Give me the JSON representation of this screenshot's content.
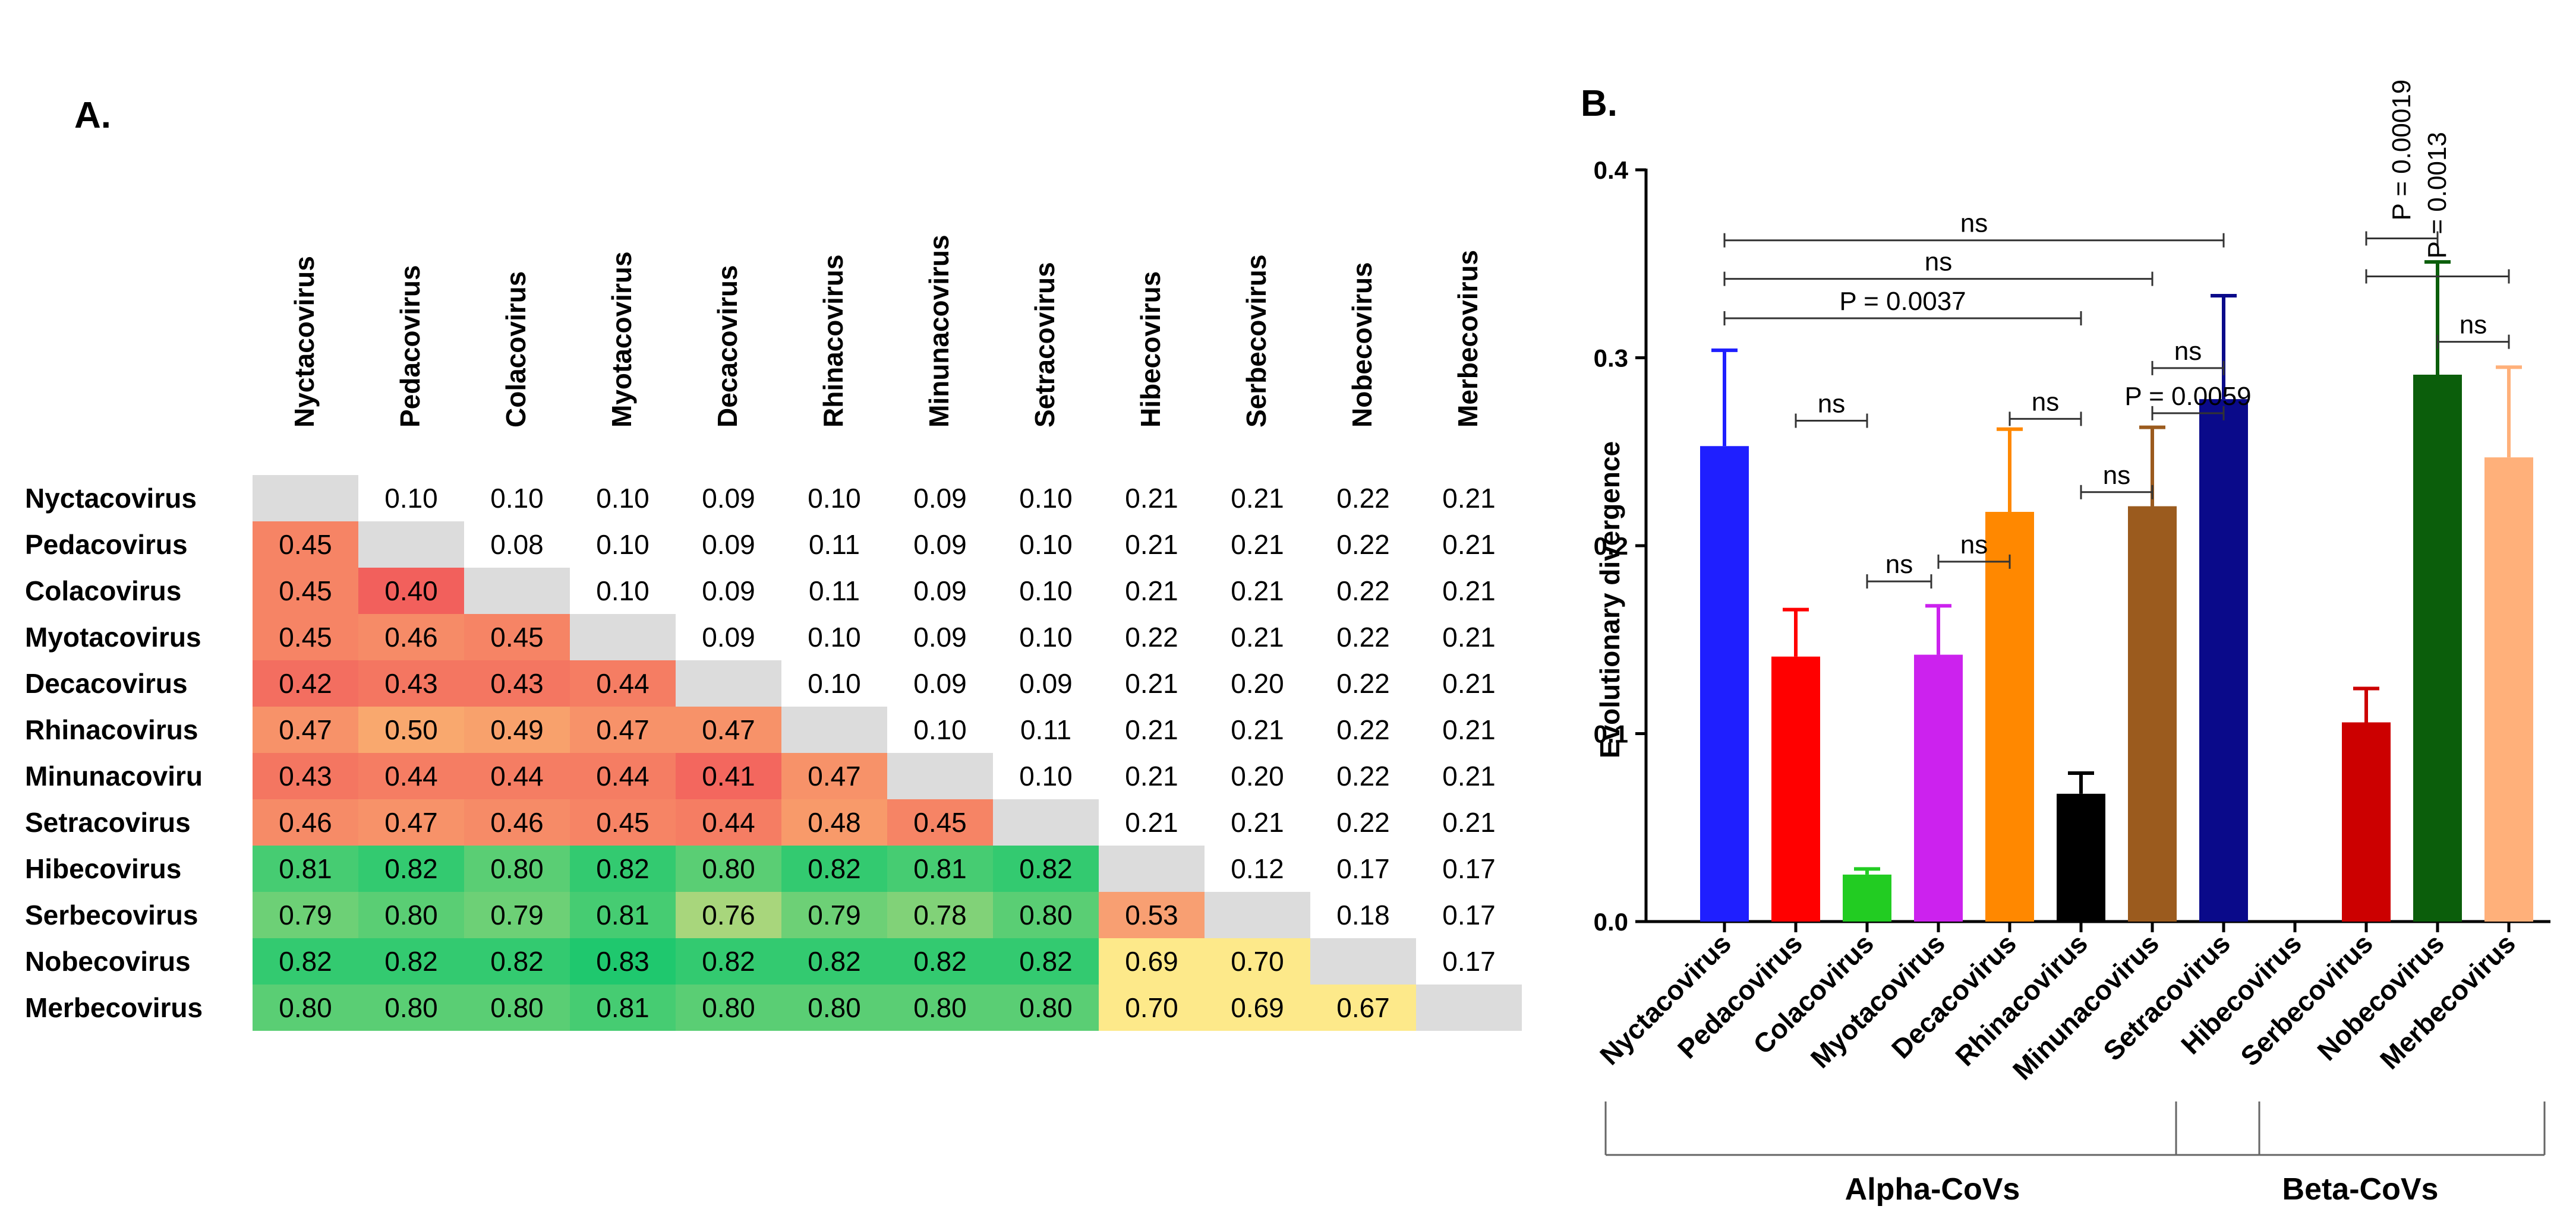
{
  "panels": {
    "a_label": "A.",
    "b_label": "B."
  },
  "heatmap": {
    "type": "heatmap",
    "row_labels": [
      "Nyctacovirus",
      "Pedacovirus",
      "Colacovirus",
      "Myotacovirus",
      "Decacovirus",
      "Rhinacovirus",
      "Minunacoviru",
      "Setracovirus",
      "Hibecovirus",
      "Serbecovirus",
      "Nobecovirus",
      "Merbecovirus"
    ],
    "col_labels": [
      "Nyctacovirus",
      "Pedacovirus",
      "Colacovirus",
      "Myotacovirus",
      "Decacovirus",
      "Rhinacovirus",
      "Minunacovirus",
      "Setracovirus",
      "Hibecovirus",
      "Serbecovirus",
      "Nobecovirus",
      "Merbecovirus"
    ],
    "matrix": [
      [
        null,
        "0.10",
        "0.10",
        "0.10",
        "0.09",
        "0.10",
        "0.09",
        "0.10",
        "0.21",
        "0.21",
        "0.22",
        "0.21"
      ],
      [
        "0.45",
        null,
        "0.08",
        "0.10",
        "0.09",
        "0.11",
        "0.09",
        "0.10",
        "0.21",
        "0.21",
        "0.22",
        "0.21"
      ],
      [
        "0.45",
        "0.40",
        null,
        "0.10",
        "0.09",
        "0.11",
        "0.09",
        "0.10",
        "0.21",
        "0.21",
        "0.22",
        "0.21"
      ],
      [
        "0.45",
        "0.46",
        "0.45",
        null,
        "0.09",
        "0.10",
        "0.09",
        "0.10",
        "0.22",
        "0.21",
        "0.22",
        "0.21"
      ],
      [
        "0.42",
        "0.43",
        "0.43",
        "0.44",
        null,
        "0.10",
        "0.09",
        "0.09",
        "0.21",
        "0.20",
        "0.22",
        "0.21"
      ],
      [
        "0.47",
        "0.50",
        "0.49",
        "0.47",
        "0.47",
        null,
        "0.10",
        "0.11",
        "0.21",
        "0.21",
        "0.22",
        "0.21"
      ],
      [
        "0.43",
        "0.44",
        "0.44",
        "0.44",
        "0.41",
        "0.47",
        null,
        "0.10",
        "0.21",
        "0.20",
        "0.22",
        "0.21"
      ],
      [
        "0.46",
        "0.47",
        "0.46",
        "0.45",
        "0.44",
        "0.48",
        "0.45",
        null,
        "0.21",
        "0.21",
        "0.22",
        "0.21"
      ],
      [
        "0.81",
        "0.82",
        "0.80",
        "0.82",
        "0.80",
        "0.82",
        "0.81",
        "0.82",
        null,
        "0.12",
        "0.17",
        "0.17"
      ],
      [
        "0.79",
        "0.80",
        "0.79",
        "0.81",
        "0.76",
        "0.79",
        "0.78",
        "0.80",
        "0.53",
        null,
        "0.18",
        "0.17"
      ],
      [
        "0.82",
        "0.82",
        "0.82",
        "0.83",
        "0.82",
        "0.82",
        "0.82",
        "0.82",
        "0.69",
        "0.70",
        null,
        "0.17"
      ],
      [
        "0.80",
        "0.80",
        "0.80",
        "0.81",
        "0.80",
        "0.80",
        "0.80",
        "0.80",
        "0.70",
        "0.69",
        "0.67",
        null
      ]
    ],
    "colors": {
      "diagonal": "#dcdcdc",
      "red_low": "#f2605c",
      "red_high": "#f9a86e",
      "yellow": "#fde98a",
      "green_high": "#1fc86e",
      "green_low": "#a8d67c",
      "salmon": "#f89f72"
    }
  },
  "chart_data": {
    "type": "bar",
    "ylabel": "Evolutionary divergence",
    "ylim": [
      0,
      0.4
    ],
    "yticks": [
      "0.0",
      "0.1",
      "0.2",
      "0.3",
      "0.4"
    ],
    "categories": [
      "Nyctacovirus",
      "Pedacovirus",
      "Colacovirus",
      "Myotacovirus",
      "Decacovirus",
      "Rhinacovirus",
      "Minunacovirus",
      "Setracovirus",
      "Hibecovirus",
      "Serbecovirus",
      "Nobecovirus",
      "Merbecovirus"
    ],
    "values": [
      0.253,
      0.141,
      0.025,
      0.142,
      0.218,
      0.068,
      0.221,
      0.278,
      null,
      0.106,
      0.291,
      0.247
    ],
    "errors": [
      0.051,
      0.025,
      0.003,
      0.026,
      0.044,
      0.011,
      0.042,
      0.055,
      null,
      0.018,
      0.06,
      0.048
    ],
    "colors": [
      "#1f1fff",
      "#ff0000",
      "#22cc22",
      "#cc22ee",
      "#ff8800",
      "#000000",
      "#9b5b1e",
      "#0a0a8a",
      null,
      "#cc0000",
      "#0b5e0b",
      "#ffb07a"
    ],
    "groups": [
      {
        "label": "Alpha-CoVs",
        "start": 0,
        "end": 7
      },
      {
        "label": "Beta-CoVs",
        "start": 8,
        "end": 11
      }
    ],
    "comparisons": [
      {
        "from": 0,
        "to": 7,
        "label": "ns",
        "y": 0.3625,
        "orient": "h"
      },
      {
        "from": 0,
        "to": 6,
        "label": "ns",
        "y": 0.342,
        "orient": "h"
      },
      {
        "from": 0,
        "to": 5,
        "label": "P = 0.0037",
        "y": 0.321,
        "orient": "h"
      },
      {
        "from": 1,
        "to": 2,
        "label": "ns",
        "y": 0.2665,
        "orient": "h"
      },
      {
        "from": 2,
        "to": 2.9,
        "label": "ns",
        "y": 0.181,
        "orient": "h"
      },
      {
        "from": 3,
        "to": 4,
        "label": "ns",
        "y": 0.1915,
        "orient": "h"
      },
      {
        "from": 4,
        "to": 5,
        "label": "ns",
        "y": 0.2675,
        "orient": "h"
      },
      {
        "from": 5,
        "to": 6,
        "label": "ns",
        "y": 0.2285,
        "orient": "h"
      },
      {
        "from": 6,
        "to": 7,
        "label": "P = 0.0059",
        "y": 0.2705,
        "orient": "h"
      },
      {
        "from": 6,
        "to": 7,
        "label": "ns",
        "y": 0.2945,
        "orient": "h"
      },
      {
        "from": 9,
        "to": 10,
        "label": "P = 0.00019",
        "y": 0.3635,
        "orient": "v"
      },
      {
        "from": 9,
        "to": 11,
        "label": "P = 0.0013",
        "y": 0.3433,
        "orient": "v"
      },
      {
        "from": 10,
        "to": 11,
        "label": "ns",
        "y": 0.3085,
        "orient": "h"
      }
    ]
  }
}
